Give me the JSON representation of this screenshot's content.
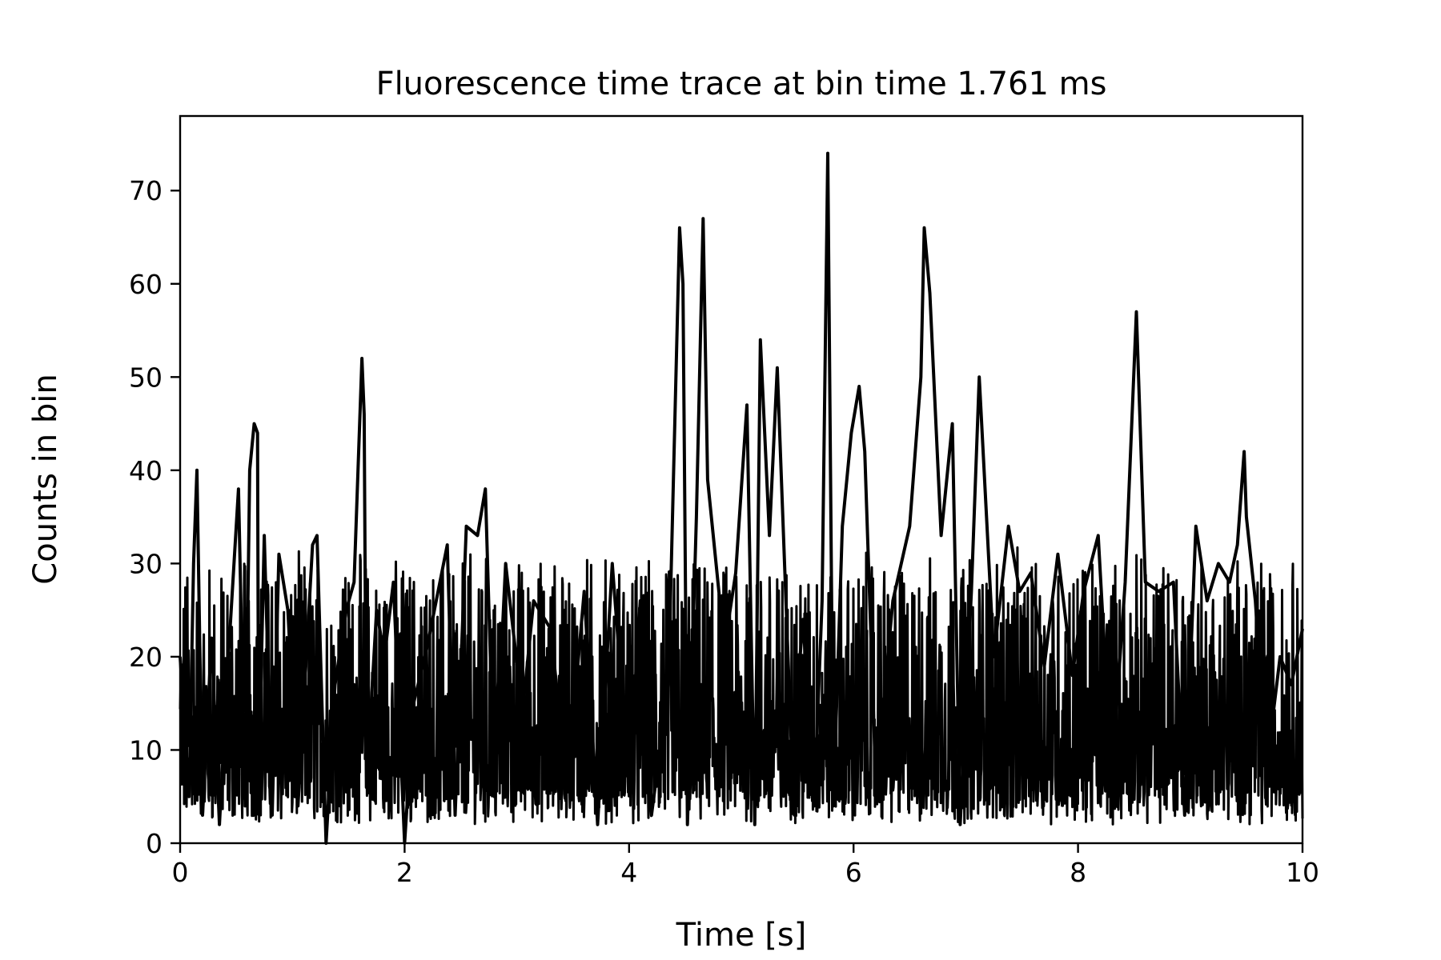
{
  "chart_data": {
    "type": "line",
    "title": "Fluorescence time trace at bin time 1.761 ms",
    "xlabel": "Time [s]",
    "ylabel": "Counts in bin",
    "xlim": [
      0,
      10
    ],
    "ylim": [
      0,
      78
    ],
    "x_ticks": [
      0,
      2,
      4,
      6,
      8,
      10
    ],
    "y_ticks": [
      0,
      10,
      20,
      30,
      40,
      50,
      60,
      70
    ],
    "grid": false,
    "legend": "none",
    "line_color": "#000000",
    "series": [
      {
        "x": [
          0.0,
          0.08,
          0.12,
          0.15,
          0.2,
          0.28,
          0.35,
          0.42,
          0.52,
          0.58,
          0.62,
          0.66,
          0.69,
          0.7,
          0.75,
          0.82,
          0.88,
          0.96,
          1.05,
          1.12,
          1.18,
          1.22,
          1.3,
          1.38,
          1.48,
          1.55,
          1.62,
          1.64,
          1.66,
          1.75,
          1.82,
          1.9,
          2.0,
          2.08,
          2.2,
          2.38,
          2.45,
          2.55,
          2.65,
          2.72,
          2.8,
          2.9,
          3.05,
          3.15,
          3.3,
          3.45,
          3.6,
          3.72,
          3.85,
          4.0,
          4.1,
          4.2,
          4.35,
          4.45,
          4.48,
          4.52,
          4.6,
          4.66,
          4.7,
          4.85,
          4.95,
          5.05,
          5.12,
          5.17,
          5.25,
          5.32,
          5.45,
          5.55,
          5.65,
          5.72,
          5.77,
          5.82,
          5.9,
          5.98,
          6.05,
          6.1,
          6.2,
          6.35,
          6.5,
          6.6,
          6.63,
          6.68,
          6.78,
          6.88,
          6.95,
          7.05,
          7.12,
          7.25,
          7.38,
          7.48,
          7.58,
          7.7,
          7.82,
          7.95,
          8.05,
          8.18,
          8.3,
          8.42,
          8.52,
          8.6,
          8.72,
          8.85,
          8.95,
          9.05,
          9.15,
          9.25,
          9.35,
          9.42,
          9.48,
          9.5,
          9.58,
          9.68,
          9.8,
          9.9,
          10.0
        ],
        "y": [
          20,
          5,
          30,
          40,
          3,
          22,
          2,
          18,
          38,
          4,
          40,
          45,
          44,
          6,
          33,
          3,
          31,
          25,
          4,
          19,
          32,
          33,
          0,
          17,
          25,
          28,
          52,
          46,
          6,
          25,
          20,
          28,
          0,
          15,
          21,
          32,
          3,
          34,
          33,
          38,
          5,
          30,
          14,
          26,
          23,
          6,
          27,
          2,
          30,
          6,
          26,
          3,
          17,
          66,
          60,
          2,
          35,
          67,
          39,
          21,
          29,
          47,
          2,
          54,
          33,
          51,
          9,
          24,
          4,
          26,
          74,
          4,
          34,
          44,
          49,
          42,
          6,
          26,
          34,
          50,
          66,
          59,
          33,
          45,
          2,
          27,
          50,
          20,
          34,
          27,
          29,
          19,
          31,
          18,
          27,
          33,
          7,
          28,
          57,
          28,
          27,
          28,
          3,
          34,
          26,
          30,
          28,
          32,
          42,
          35,
          26,
          8,
          20,
          17,
          23
        ]
      }
    ]
  }
}
